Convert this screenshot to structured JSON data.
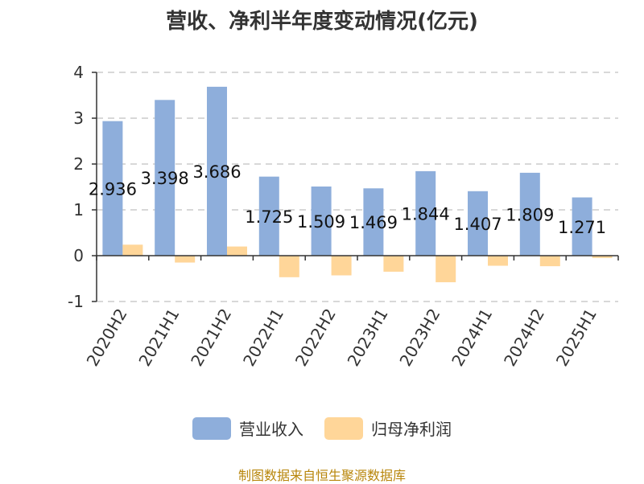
{
  "chart_data": {
    "type": "bar",
    "title": "营收、净利半年度变动情况(亿元)",
    "categories": [
      "2020H2",
      "2021H1",
      "2021H2",
      "2022H1",
      "2022H2",
      "2023H1",
      "2023H2",
      "2024H1",
      "2024H2",
      "2025H1"
    ],
    "series": [
      {
        "name": "营业收入",
        "color": "#8eaedb",
        "values": [
          2.936,
          3.398,
          3.686,
          1.725,
          1.509,
          1.469,
          1.844,
          1.407,
          1.809,
          1.271
        ],
        "labels": [
          "2.936",
          "3.398",
          "3.686",
          "1.725",
          "1.509",
          "1.469",
          "1.844",
          "1.407",
          "1.809",
          "1.271"
        ]
      },
      {
        "name": "归母净利润",
        "color": "#ffd699",
        "values": [
          0.24,
          -0.15,
          0.2,
          -0.47,
          -0.43,
          -0.35,
          -0.58,
          -0.22,
          -0.23,
          -0.05
        ]
      }
    ],
    "ylim": [
      -1,
      4
    ],
    "yticks": [
      -1,
      0,
      1,
      2,
      3,
      4
    ],
    "grid": true,
    "legend_position": "bottom-center"
  },
  "source_text": "制图数据来自恒生聚源数据库"
}
